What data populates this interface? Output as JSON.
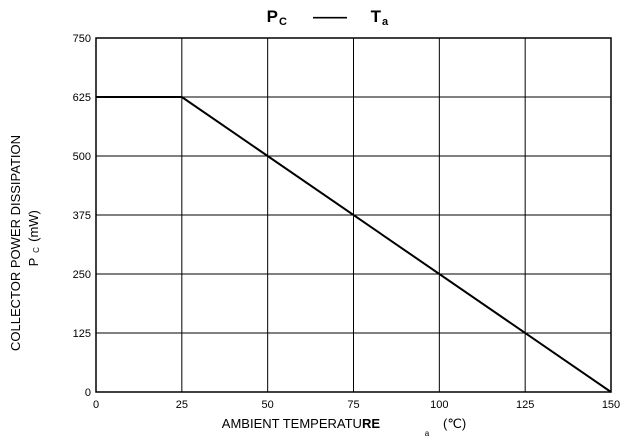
{
  "chart_data": {
    "type": "line",
    "title": {
      "left_symbol": "P",
      "left_subscript": "C",
      "dash": "——",
      "right_symbol": "T",
      "right_subscript": "a"
    },
    "xlabel": {
      "text_main": "AMBIENT TEMPERATU",
      "text_bold": "RE",
      "subscript": "a",
      "unit": "(℃)"
    },
    "ylabel": {
      "line1": "COLLECTOR POWER DISSIPATION",
      "symbol": "P",
      "subscript": "C",
      "unit": "(mW)"
    },
    "xlim": [
      0,
      150
    ],
    "ylim": [
      0,
      750
    ],
    "xticks": [
      "0",
      "25",
      "50",
      "75",
      "100",
      "125",
      "150"
    ],
    "yticks": [
      "0",
      "125",
      "250",
      "375",
      "500",
      "625",
      "750"
    ],
    "grid": true,
    "series": [
      {
        "x": [
          0,
          25,
          150
        ],
        "y": [
          625,
          625,
          0
        ]
      }
    ]
  }
}
